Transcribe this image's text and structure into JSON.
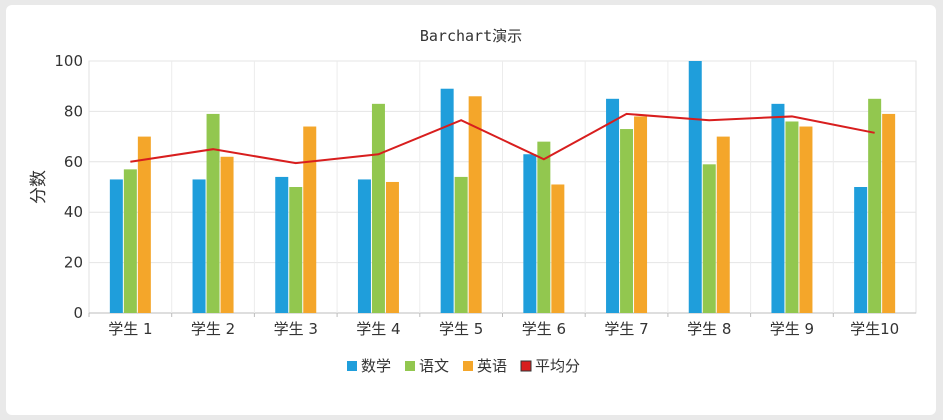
{
  "chart_data": {
    "type": "bar",
    "title": "Barchart演示",
    "xlabel": "",
    "ylabel": "分数",
    "ylim": [
      0,
      100
    ],
    "yticks": [
      0,
      20,
      40,
      60,
      80,
      100
    ],
    "categories": [
      "学生 1",
      "学生 2",
      "学生 3",
      "学生 4",
      "学生 5",
      "学生 6",
      "学生 7",
      "学生 8",
      "学生 9",
      "学生10"
    ],
    "series": [
      {
        "name": "数学",
        "type": "bar",
        "color": "#1f9edb",
        "values": [
          53,
          53,
          54,
          53,
          89,
          63,
          85,
          100,
          83,
          50
        ]
      },
      {
        "name": "语文",
        "type": "bar",
        "color": "#92c74f",
        "values": [
          57,
          79,
          50,
          83,
          54,
          68,
          73,
          59,
          76,
          85
        ]
      },
      {
        "name": "英语",
        "type": "bar",
        "color": "#f4a62a",
        "values": [
          70,
          62,
          74,
          52,
          86,
          51,
          78,
          70,
          74,
          79
        ]
      },
      {
        "name": "平均分",
        "type": "line",
        "color": "#d81e1e",
        "values": [
          60,
          65,
          59.5,
          63,
          76.5,
          61,
          79,
          76.5,
          78,
          71.5
        ]
      }
    ],
    "grid": true,
    "legend_position": "bottom"
  }
}
